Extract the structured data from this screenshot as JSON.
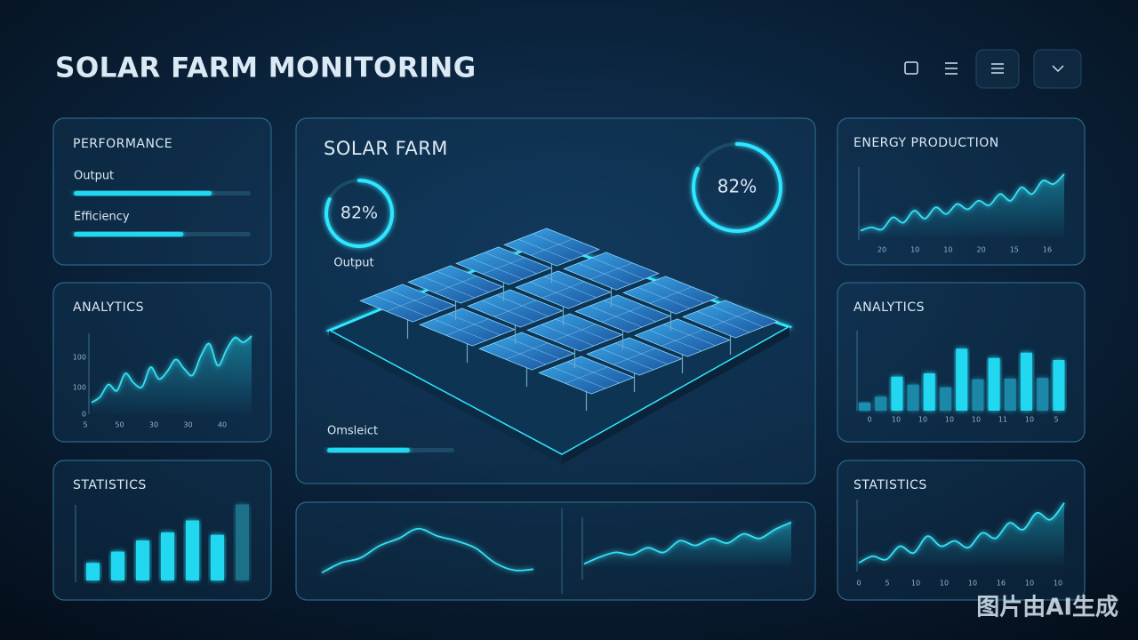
{
  "header": {
    "title": "SOLAR FARM MONITORING"
  },
  "performance": {
    "title": "PERFORMANCE",
    "metrics": [
      {
        "label": "Output",
        "value": 78
      },
      {
        "label": "Efficiency",
        "value": 62
      }
    ]
  },
  "analytics_left": {
    "title": "ANALYTICS",
    "yticks": [
      "100",
      "100",
      "0"
    ],
    "xticks": [
      "5",
      "50",
      "30",
      "30",
      "40"
    ],
    "values": [
      15,
      22,
      38,
      30,
      52,
      40,
      35,
      60,
      45,
      55,
      70,
      58,
      50,
      75,
      90,
      62,
      82,
      98,
      92,
      100
    ]
  },
  "statistics_left": {
    "title": "STATISTICS",
    "values": [
      22,
      36,
      50,
      60,
      75,
      57,
      95
    ]
  },
  "center": {
    "title": "SOLAR FARM",
    "gauge_small": {
      "value": 82,
      "label": "82%",
      "caption": "Output"
    },
    "gauge_large": {
      "value": 82,
      "label": "82%"
    },
    "progress": {
      "label": "Omsleict",
      "value": 65
    }
  },
  "trend_bottom_left": {
    "values": [
      5,
      25,
      35,
      60,
      75,
      95,
      80,
      70,
      55,
      25,
      10,
      12
    ]
  },
  "trend_bottom_right": {
    "values": [
      5,
      20,
      30,
      25,
      40,
      30,
      55,
      45,
      60,
      50,
      70,
      60,
      80,
      95
    ]
  },
  "energy_production": {
    "title": "ENERGY PRODUCTION",
    "xticks": [
      "20",
      "10",
      "10",
      "20",
      "15",
      "16"
    ],
    "values": [
      10,
      15,
      12,
      30,
      22,
      40,
      28,
      45,
      35,
      50,
      42,
      55,
      48,
      65,
      55,
      75,
      65,
      85,
      80,
      95
    ]
  },
  "analytics_right": {
    "title": "ANALYTICS",
    "xticks": [
      "0",
      "10",
      "10",
      "10",
      "10",
      "11",
      "10",
      "5"
    ],
    "values": [
      12,
      21,
      51,
      39,
      56,
      35,
      93,
      47,
      79,
      48,
      87,
      49,
      76
    ]
  },
  "statistics_right": {
    "title": "STATISTICS",
    "xticks": [
      "0",
      "5",
      "10",
      "10",
      "10",
      "16",
      "10",
      "10"
    ],
    "values": [
      5,
      15,
      10,
      30,
      20,
      45,
      30,
      38,
      28,
      50,
      42,
      65,
      55,
      80,
      70,
      95
    ]
  },
  "watermark": "图片由AI生成"
}
